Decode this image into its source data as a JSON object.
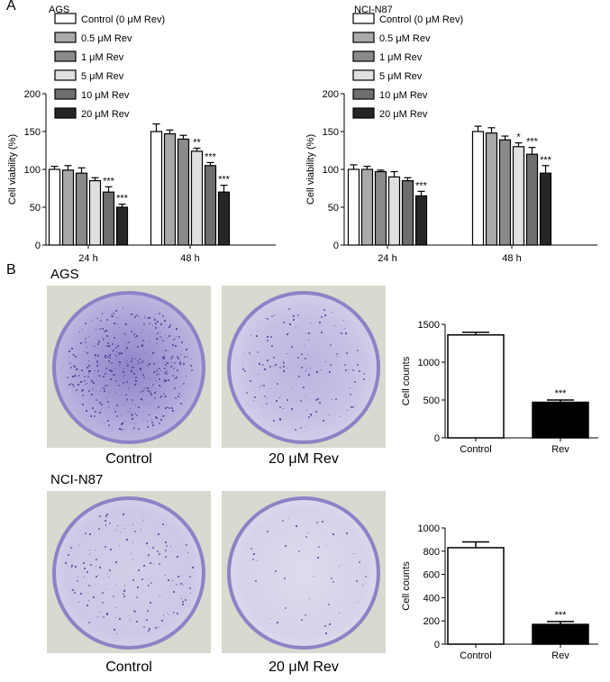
{
  "panel_a_label": "A",
  "panel_b_label": "B",
  "colony_labels": {
    "ags": "AGS",
    "ncin87": "NCI-N87",
    "control": "Control",
    "rev20": "20 μM Rev"
  },
  "colors": {
    "bar_fills": [
      "#ffffff",
      "#a9a9a9",
      "#8a8a8a",
      "#e0e0e0",
      "#6e6e6e",
      "#262626"
    ],
    "dish_ring": "#8b83c6",
    "dish_fill_dense": "#b0a6da",
    "dish_fill_light": "#cbc6e4",
    "plate_background": "#d7d7ce"
  },
  "chart_data": [
    {
      "id": "ags-viability",
      "type": "bar",
      "subtitle": "AGS",
      "ylabel": "Cell viability (%)",
      "ylim": [
        0,
        200
      ],
      "yticks": [
        "0",
        "50",
        "100",
        "150",
        "200"
      ],
      "categories": [
        "24 h",
        "48 h"
      ],
      "legend": [
        "Control (0 μM Rev)",
        "0.5 μM Rev",
        "1 μM Rev",
        "5 μM Rev",
        "10 μM Rev",
        "20 μM Rev"
      ],
      "series": [
        {
          "name": "Control (0 μM Rev)",
          "values": [
            100,
            150
          ],
          "errors": [
            4,
            10
          ]
        },
        {
          "name": "0.5 μM Rev",
          "values": [
            99,
            147
          ],
          "errors": [
            6,
            5
          ]
        },
        {
          "name": "1 μM Rev",
          "values": [
            95,
            140
          ],
          "errors": [
            7,
            5
          ]
        },
        {
          "name": "5 μM Rev",
          "values": [
            85,
            124
          ],
          "errors": [
            4,
            4
          ]
        },
        {
          "name": "10 μM Rev",
          "values": [
            70,
            105
          ],
          "errors": [
            7,
            4
          ]
        },
        {
          "name": "20 μM Rev",
          "values": [
            50,
            70
          ],
          "errors": [
            4,
            9
          ]
        }
      ],
      "significance": [
        [
          "",
          ""
        ],
        [
          "",
          ""
        ],
        [
          "",
          ""
        ],
        [
          "",
          "**"
        ],
        [
          "***",
          "***"
        ],
        [
          "***",
          "***"
        ]
      ]
    },
    {
      "id": "ncin87-viability",
      "type": "bar",
      "subtitle": "NCI-N87",
      "ylabel": "Cell viability (%)",
      "ylim": [
        0,
        200
      ],
      "yticks": [
        "0",
        "50",
        "100",
        "150",
        "200"
      ],
      "categories": [
        "24 h",
        "48 h"
      ],
      "legend": [
        "Control (0 μM Rev)",
        "0.5 μM Rev",
        "1 μM Rev",
        "5 μM Rev",
        "10 μM Rev",
        "20 μM Rev"
      ],
      "series": [
        {
          "name": "Control (0 μM Rev)",
          "values": [
            100,
            150
          ],
          "errors": [
            6,
            7
          ]
        },
        {
          "name": "0.5 μM Rev",
          "values": [
            100,
            148
          ],
          "errors": [
            4,
            7
          ]
        },
        {
          "name": "1 μM Rev",
          "values": [
            97,
            139
          ],
          "errors": [
            2,
            5
          ]
        },
        {
          "name": "5 μM Rev",
          "values": [
            90,
            130
          ],
          "errors": [
            7,
            5
          ]
        },
        {
          "name": "10 μM Rev",
          "values": [
            85,
            120
          ],
          "errors": [
            4,
            9
          ]
        },
        {
          "name": "20 μM Rev",
          "values": [
            65,
            95
          ],
          "errors": [
            6,
            10
          ]
        }
      ],
      "significance": [
        [
          "",
          ""
        ],
        [
          "",
          ""
        ],
        [
          "",
          ""
        ],
        [
          "",
          "*"
        ],
        [
          "",
          "***"
        ],
        [
          "***",
          "***"
        ]
      ]
    },
    {
      "id": "ags-colony",
      "type": "bar",
      "ylabel": "Cell counts",
      "ylim": [
        0,
        1500
      ],
      "yticks": [
        "0",
        "500",
        "1000",
        "1500"
      ],
      "categories": [
        "Control",
        "Rev"
      ],
      "values": [
        1360,
        470
      ],
      "errors": [
        35,
        30
      ],
      "fills": [
        "#ffffff",
        "#000000"
      ],
      "significance": [
        "",
        "***"
      ]
    },
    {
      "id": "ncin87-colony",
      "type": "bar",
      "ylabel": "Cell counts",
      "ylim": [
        0,
        1000
      ],
      "yticks": [
        "0",
        "200",
        "400",
        "600",
        "800",
        "1000"
      ],
      "categories": [
        "Control",
        "Rev"
      ],
      "values": [
        830,
        170
      ],
      "errors": [
        50,
        25
      ],
      "fills": [
        "#ffffff",
        "#000000"
      ],
      "significance": [
        "",
        "***"
      ]
    }
  ]
}
